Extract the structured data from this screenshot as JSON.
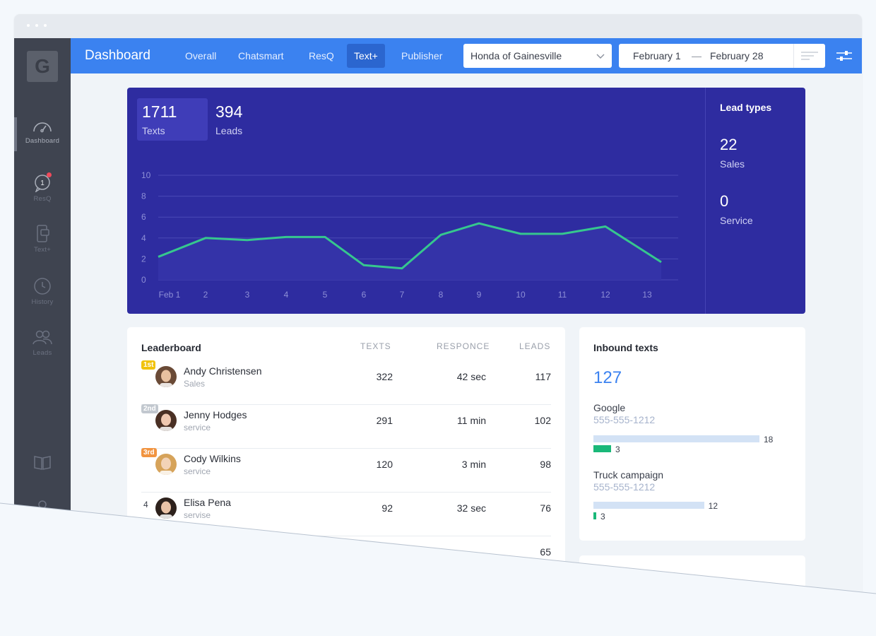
{
  "sidebar": {
    "logo": "G",
    "items": [
      {
        "label": "Dashboard"
      },
      {
        "label": "ResQ",
        "badge": "1"
      },
      {
        "label": "Text+"
      },
      {
        "label": "History"
      },
      {
        "label": "Leads"
      }
    ]
  },
  "header": {
    "title": "Dashboard",
    "tabs": [
      {
        "label": "Overall"
      },
      {
        "label": "Chatsmart"
      },
      {
        "label": "ResQ"
      },
      {
        "label": "Text+",
        "active": true
      },
      {
        "label": "Publisher"
      }
    ],
    "dealer_select": "Honda of Gainesville",
    "date_from": "February 1",
    "date_sep": "—",
    "date_to": "February 28"
  },
  "summary": {
    "texts_value": "1711",
    "texts_label": "Texts",
    "leads_value": "394",
    "leads_label": "Leads"
  },
  "lead_types": {
    "title": "Lead types",
    "sales_value": "22",
    "sales_label": "Sales",
    "service_value": "0",
    "service_label": "Service"
  },
  "chart_data": {
    "type": "area",
    "title": "",
    "xlabel": "",
    "ylabel": "",
    "categories": [
      "Feb 1",
      "2",
      "3",
      "4",
      "5",
      "6",
      "7",
      "8",
      "9",
      "10",
      "11",
      "12",
      "13"
    ],
    "yticks": [
      "0",
      "2",
      "4",
      "6",
      "8",
      "10"
    ],
    "ylim": [
      0,
      10
    ],
    "grid": true,
    "series": [
      {
        "values": [
          2.2,
          4.0,
          3.8,
          4.1,
          4.1,
          1.4,
          1.1,
          4.3,
          5.4,
          4.4,
          4.4,
          5.1,
          1.7
        ]
      }
    ],
    "colors": {
      "line": "#36c78e",
      "grid": "#4a49b6",
      "area": "#3433a8"
    }
  },
  "leaderboard": {
    "title": "Leaderboard",
    "columns": [
      "TEXTS",
      "RESPONCE",
      "LEADS"
    ],
    "rows": [
      {
        "rank": "1st",
        "name": "Andy Christensen",
        "role": "Sales",
        "texts": "322",
        "response": "42 sec",
        "leads": "117"
      },
      {
        "rank": "2nd",
        "name": "Jenny Hodges",
        "role": "service",
        "texts": "291",
        "response": "11 min",
        "leads": "102"
      },
      {
        "rank": "3rd",
        "name": "Cody Wilkins",
        "role": "service",
        "texts": "120",
        "response": "3 min",
        "leads": "98"
      },
      {
        "rank": "4",
        "name": "Elisa Pena",
        "role": "servise",
        "texts": "92",
        "response": "32 sec",
        "leads": "76"
      },
      {
        "leads": "65"
      }
    ]
  },
  "inbound": {
    "title": "Inbound texts",
    "total": "127",
    "sources": [
      {
        "name": "Google",
        "phone": "555-555-1212",
        "total": "18",
        "leads": "3",
        "total_value": 18,
        "leads_value": 3
      },
      {
        "name": "Truck campaign",
        "phone": "555-555-1212",
        "total": "12",
        "leads": "3",
        "total_value": 12,
        "leads_value": 3
      }
    ]
  },
  "colors": {
    "topbar": "#3b82f0",
    "chart_bg": "#2e2ca0",
    "accent_green": "#1ab879",
    "rank_gold": "#f1c30d",
    "rank_silver": "#c2c8cf",
    "rank_bronze": "#f19440"
  }
}
